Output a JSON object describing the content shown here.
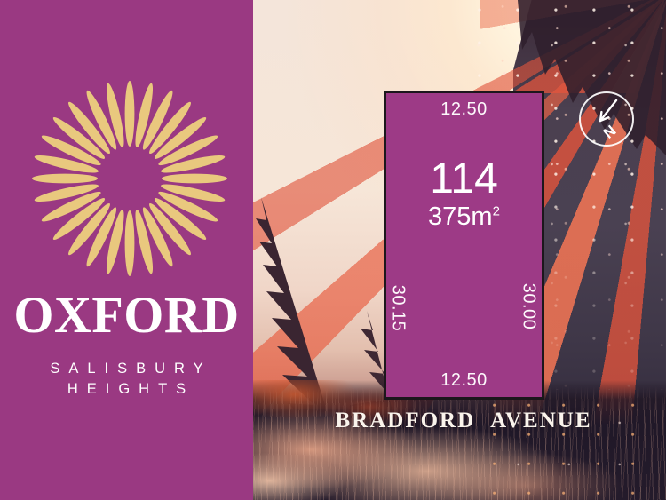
{
  "brand": {
    "title": "OXFORD",
    "subtitle_line1": "SALISBURY",
    "subtitle_line2": "HEIGHTS"
  },
  "lot": {
    "number": "114",
    "area_value": "375m",
    "area_sup": "2",
    "dim_top": "12.50",
    "dim_bottom": "12.50",
    "dim_left": "30.15",
    "dim_right": "30.00"
  },
  "street": {
    "word1": "BRADFORD",
    "word2": "AVENUE"
  },
  "compass": {
    "label": "N"
  },
  "colors": {
    "brand_purple": "#9a3982",
    "lot_purple": "#9d3a86",
    "gold_light": "#e9c87e",
    "gold_dark": "#c8913d",
    "text_white": "#ffffff",
    "beam_red": "#e2543c",
    "sky_cream": "#f4e5da",
    "dark_slate": "#453c4a"
  }
}
